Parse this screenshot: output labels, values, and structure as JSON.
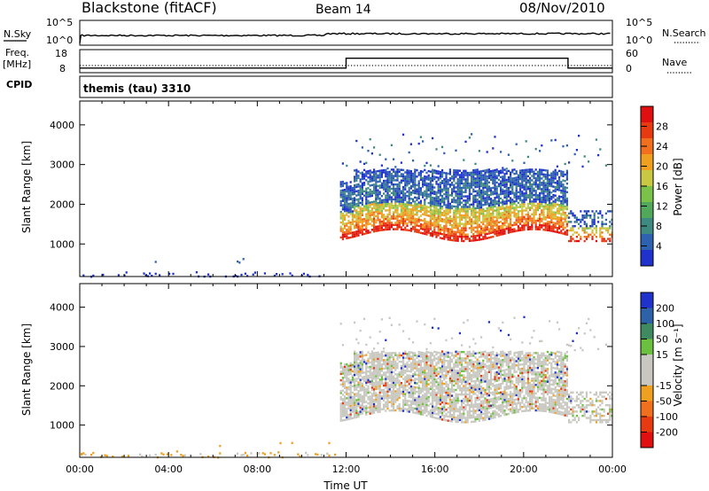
{
  "header": {
    "title": "Blackstone (fitACF)",
    "beam": "Beam 14",
    "date": "08/Nov/2010",
    "program_label": "themis (tau) 3310"
  },
  "left_labels": {
    "nsky": "N.Sky",
    "freq": "Freq.",
    "mhz": "[MHz]",
    "cpid": "CPID"
  },
  "right_labels": {
    "nsearch": "N.Search",
    "nave": "Nave"
  },
  "chart_data": [
    {
      "type": "line",
      "name": "noise",
      "ylim_labels": [
        "10^0",
        "10^5"
      ],
      "right_ylim_labels": [
        "10^0",
        "10^5"
      ],
      "series_level": 0.5
    },
    {
      "type": "line",
      "name": "frequency",
      "yticks": [
        "8",
        "18"
      ],
      "right_yticks": [
        "0",
        "60"
      ],
      "segments": [
        {
          "from": "00:00",
          "to": "12:00",
          "value": 10.5
        },
        {
          "from": "12:00",
          "to": "22:00",
          "value": 17.0
        },
        {
          "from": "22:00",
          "to": "24:00",
          "value": 10.5
        }
      ],
      "nave_level": 25
    },
    {
      "type": "heatmap",
      "name": "power",
      "ylabel": "Slant Range [km]",
      "ylim": [
        180,
        4600
      ],
      "yticks": [
        1000,
        2000,
        3000,
        4000
      ],
      "xlim_hours": [
        0,
        24
      ],
      "colorbar": {
        "label": "Power [dB]",
        "ticks": [
          "4",
          "8",
          "12",
          "16",
          "20",
          "24",
          "28"
        ],
        "colors": [
          "#1f32cc",
          "#2e62b0",
          "#3f8a80",
          "#52a85a",
          "#7ac24a",
          "#c8c844",
          "#f0a020",
          "#f07020",
          "#e83a10",
          "#e01010"
        ]
      }
    },
    {
      "type": "heatmap",
      "name": "velocity",
      "ylabel": "Slant Range [km]",
      "ylim": [
        180,
        4600
      ],
      "yticks": [
        1000,
        2000,
        3000,
        4000
      ],
      "xlim_hours": [
        0,
        24
      ],
      "xticks": [
        "00:00",
        "04:00",
        "08:00",
        "12:00",
        "16:00",
        "20:00",
        "00:00"
      ],
      "xlabel": "Time UT",
      "colorbar": {
        "label": "Velocity [m s⁻¹]",
        "ticks": [
          "200",
          "100",
          "50",
          "15",
          "-15",
          "-50",
          "-100",
          "-200"
        ],
        "colors": [
          "#1f32cc",
          "#2e62a8",
          "#3f8a60",
          "#6cc040",
          "#c8c8c0",
          "#c8c8c0",
          "#f0a020",
          "#f07020",
          "#e83a10",
          "#e01010"
        ]
      }
    }
  ]
}
